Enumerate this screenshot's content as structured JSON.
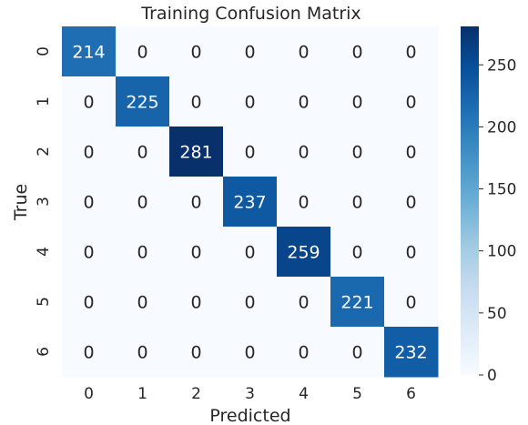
{
  "chart_data": {
    "type": "heatmap",
    "title": "Training Confusion Matrix",
    "xlabel": "Predicted",
    "ylabel": "True",
    "x_categories": [
      "0",
      "1",
      "2",
      "3",
      "4",
      "5",
      "6"
    ],
    "y_categories": [
      "0",
      "1",
      "2",
      "3",
      "4",
      "5",
      "6"
    ],
    "values": [
      [
        214,
        0,
        0,
        0,
        0,
        0,
        0
      ],
      [
        0,
        225,
        0,
        0,
        0,
        0,
        0
      ],
      [
        0,
        0,
        281,
        0,
        0,
        0,
        0
      ],
      [
        0,
        0,
        0,
        237,
        0,
        0,
        0
      ],
      [
        0,
        0,
        0,
        0,
        259,
        0,
        0
      ],
      [
        0,
        0,
        0,
        0,
        0,
        221,
        0
      ],
      [
        0,
        0,
        0,
        0,
        0,
        0,
        232
      ]
    ],
    "colorbar": {
      "min": 0,
      "max": 281,
      "ticks": [
        0,
        50,
        100,
        150,
        200,
        250
      ],
      "colormap": "Blues",
      "low_color": "#f7fbff",
      "high_color": "#08306b"
    },
    "grid": false
  }
}
